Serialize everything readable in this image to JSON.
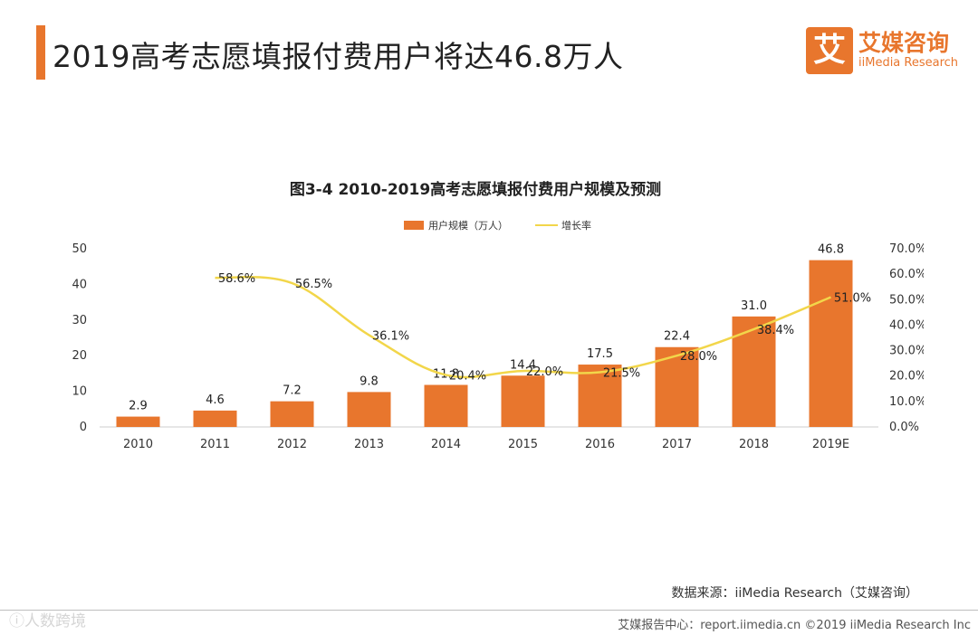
{
  "header": {
    "title": "2019高考志愿填报付费用户将达46.8万人"
  },
  "logo": {
    "mark": "艾",
    "name_cn": "艾媒咨询",
    "name_en": "iiMedia Research"
  },
  "chart_data": {
    "type": "bar",
    "title": "图3-4 2010-2019高考志愿填报付费用户规模及预测",
    "categories": [
      "2010",
      "2011",
      "2012",
      "2013",
      "2014",
      "2015",
      "2016",
      "2017",
      "2018",
      "2019E"
    ],
    "series": [
      {
        "name": "用户规模（万人）",
        "type": "bar",
        "axis": "left",
        "values": [
          2.9,
          4.6,
          7.2,
          9.8,
          11.8,
          14.4,
          17.5,
          22.4,
          31.0,
          46.8
        ],
        "labels": [
          "2.9",
          "4.6",
          "7.2",
          "9.8",
          "11.8",
          "14.4",
          "17.5",
          "22.4",
          "31.0",
          "46.8"
        ]
      },
      {
        "name": "增长率",
        "type": "line",
        "axis": "right",
        "values": [
          null,
          58.6,
          56.5,
          36.1,
          20.4,
          22.0,
          21.5,
          28.0,
          38.4,
          51.0
        ],
        "labels": [
          "",
          "58.6%",
          "56.5%",
          "36.1%",
          "20.4%",
          "22.0%",
          "21.5%",
          "28.0%",
          "38.4%",
          "51.0%"
        ]
      }
    ],
    "ylim": [
      0,
      50
    ],
    "yticks": [
      "0",
      "10",
      "20",
      "30",
      "40",
      "50"
    ],
    "y2lim": [
      0,
      70
    ],
    "y2ticks": [
      "0.0%",
      "10.0%",
      "20.0%",
      "30.0%",
      "40.0%",
      "50.0%",
      "60.0%",
      "70.0%"
    ],
    "legend_position": "top-center",
    "colors": {
      "bar": "#e8762d",
      "line": "#f2d64a"
    }
  },
  "source": "数据来源：iiMedia Research（艾媒咨询）",
  "footer": {
    "left": "ⓘ人数跨境",
    "right": "艾媒报告中心：report.iimedia.cn  ©2019  iiMedia Research  Inc"
  }
}
